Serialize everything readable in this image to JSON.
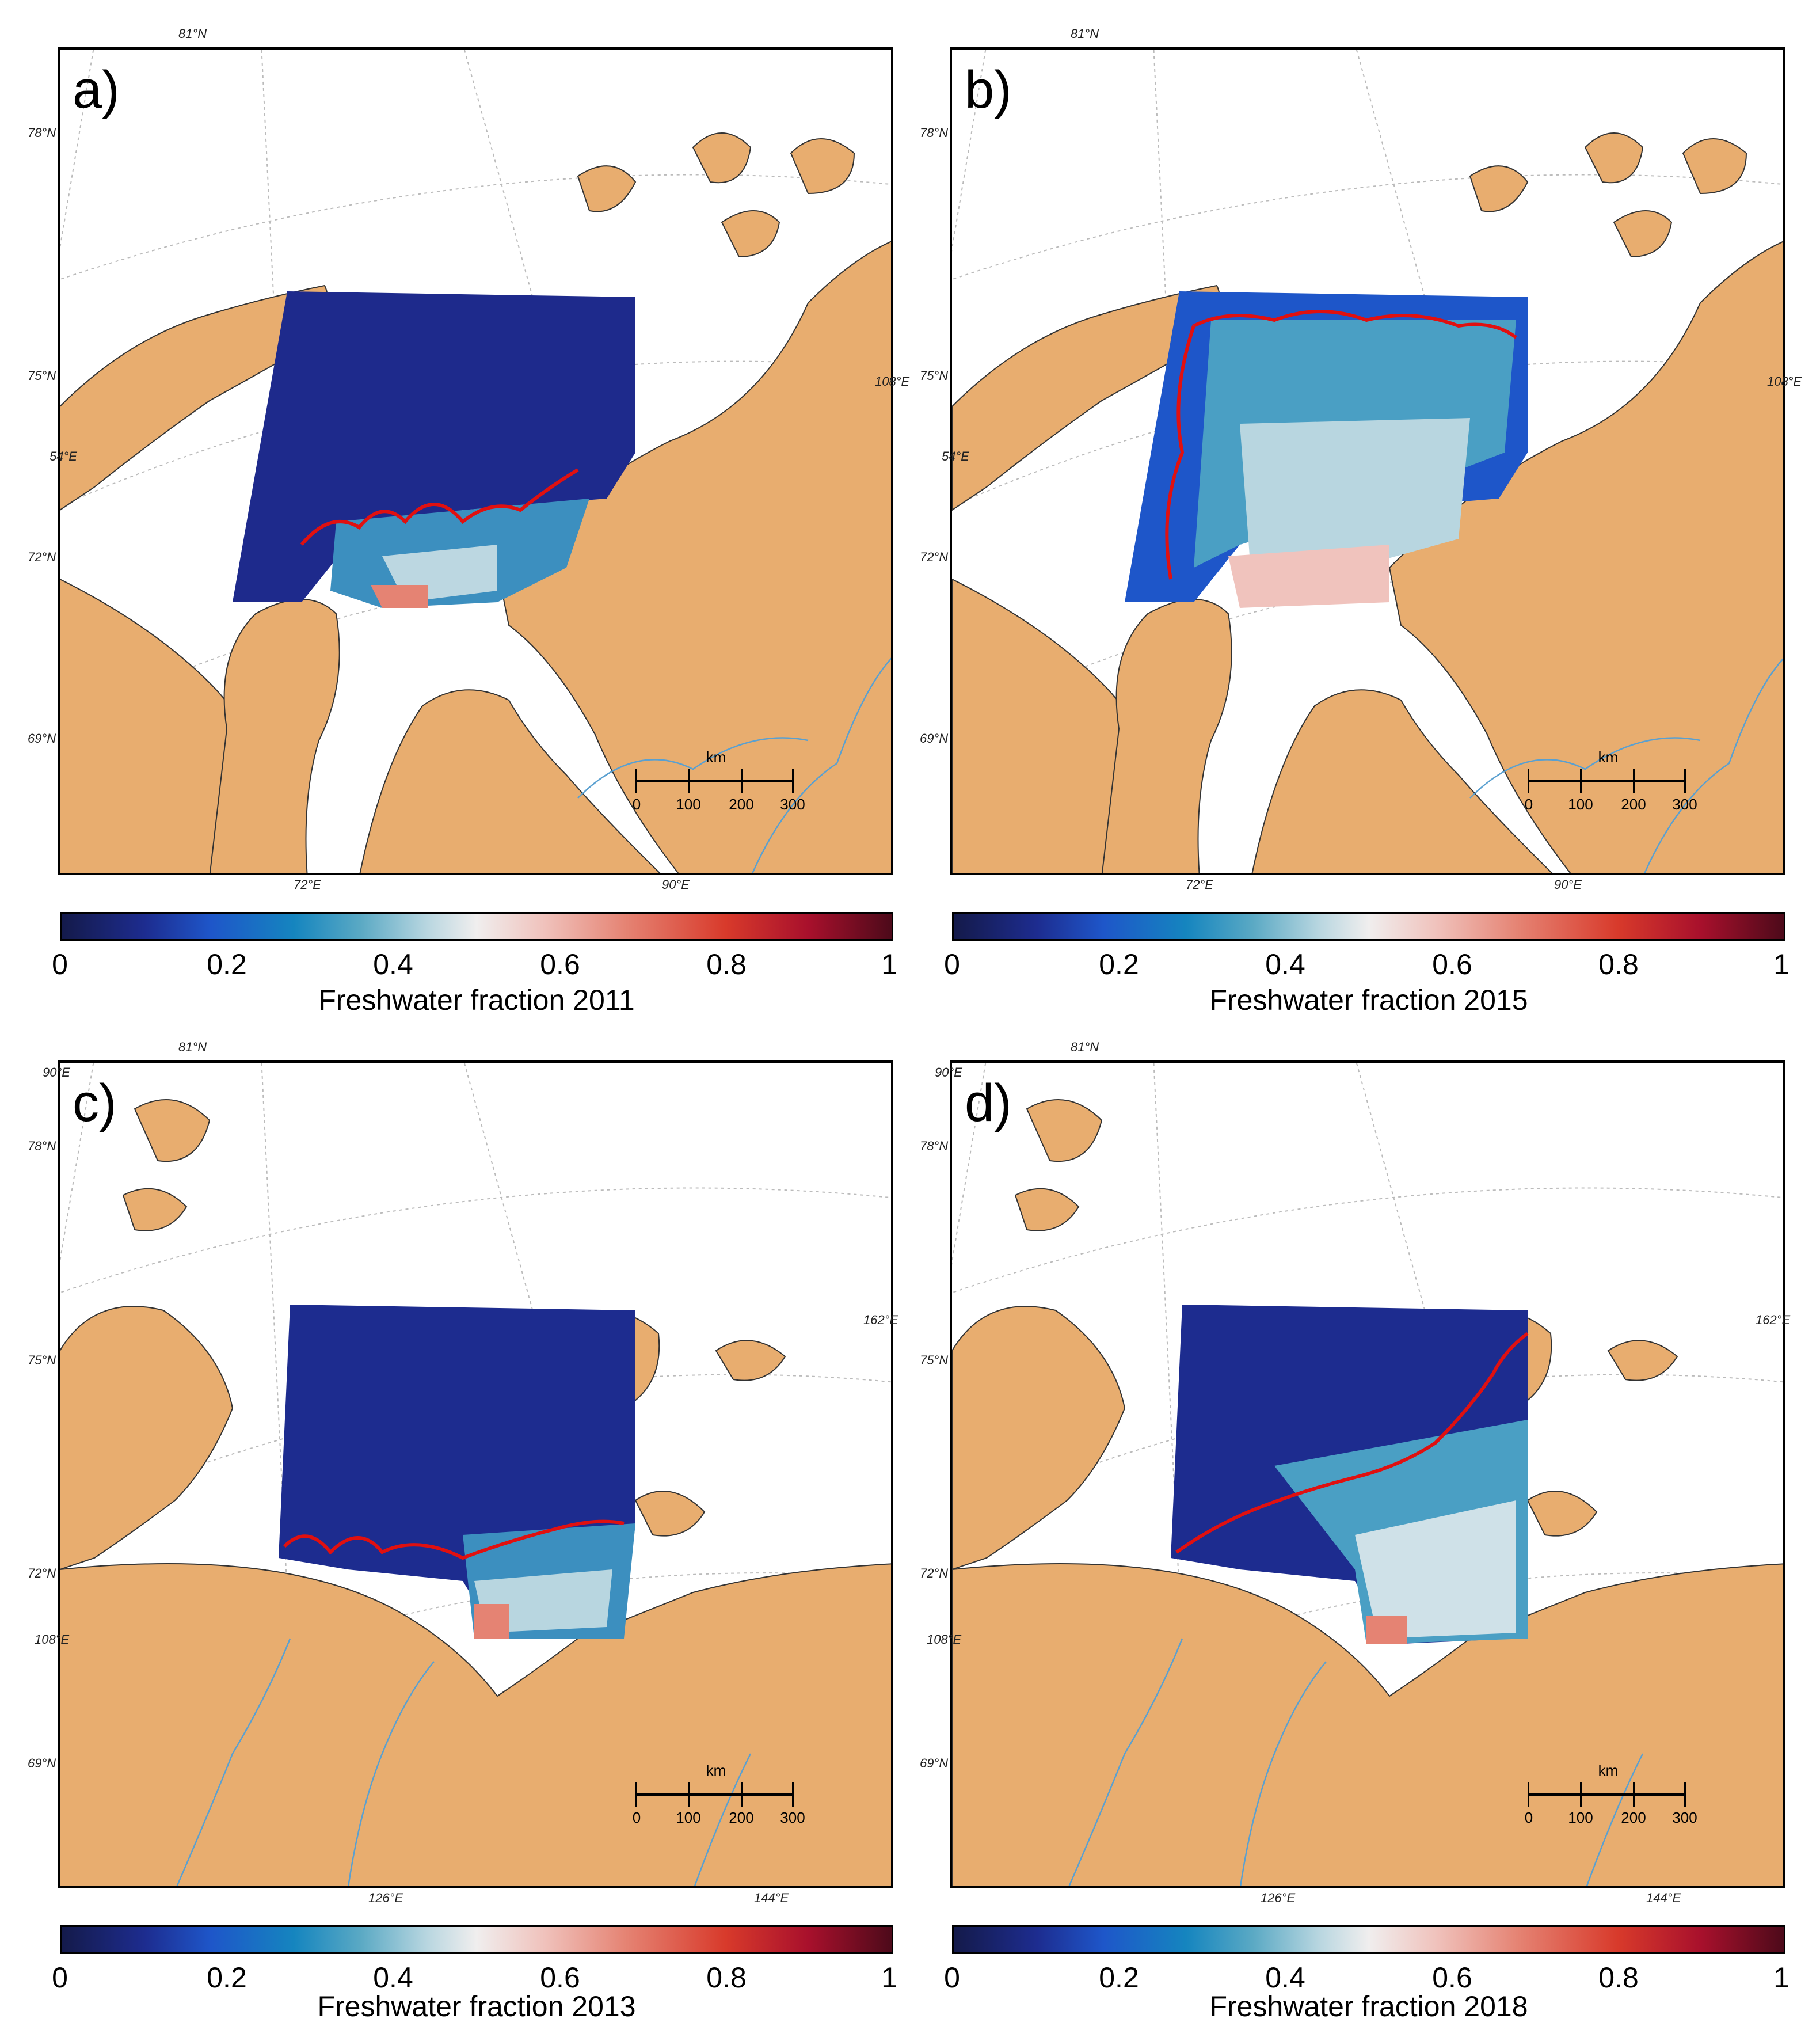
{
  "panels": [
    {
      "label": "a)",
      "title": "Freshwater fraction 2011",
      "lat_labels": [
        "81°N",
        "78°N",
        "75°N",
        "72°N",
        "69°N",
        "54°E"
      ],
      "lon_labels": [
        "72°E",
        "90°E",
        "108°E"
      ]
    },
    {
      "label": "b)",
      "title": "Freshwater fraction 2015",
      "lat_labels": [
        "81°N",
        "78°N",
        "75°N",
        "72°N",
        "69°N",
        "54°E"
      ],
      "lon_labels": [
        "72°E",
        "90°E",
        "108°E"
      ]
    },
    {
      "label": "c)",
      "title": "Freshwater fraction 2013",
      "lat_labels": [
        "81°N",
        "78°N",
        "75°N",
        "72°N",
        "69°N",
        "90°E",
        "108°E"
      ],
      "lon_labels": [
        "126°E",
        "144°E",
        "162°E"
      ]
    },
    {
      "label": "d)",
      "title": "Freshwater fraction 2018",
      "lat_labels": [
        "81°N",
        "78°N",
        "75°N",
        "72°N",
        "69°N",
        "90°E",
        "108°E"
      ],
      "lon_labels": [
        "126°E",
        "144°E",
        "162°E"
      ]
    }
  ],
  "colorbar_ticks": [
    "0",
    "0.2",
    "0.4",
    "0.6",
    "0.8",
    "1"
  ],
  "scalebar": {
    "unit": "km",
    "ticks": [
      "0",
      "100",
      "200",
      "300"
    ]
  },
  "colors": {
    "land": "#e8ad6f",
    "river": "#5aa0d0",
    "contour": "#e01010",
    "water": "#ffffff"
  }
}
